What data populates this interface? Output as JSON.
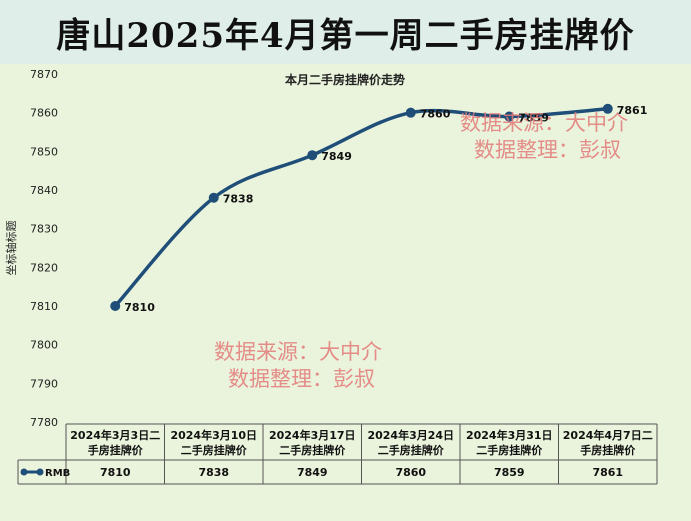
{
  "banner": {
    "title": "唐山2025年4月第一周二手房挂牌价"
  },
  "watermarks": {
    "line1": "数据来源：大中介",
    "line2": "数据整理：彭叔"
  },
  "colors": {
    "series": "#1f4e79",
    "plot_bg": "#eaf4dc",
    "banner_bg": "#dfeee8",
    "watermark": "#e47a7a"
  },
  "chart_data": {
    "type": "line",
    "title": "本月二手房挂牌价走势",
    "ylabel": "坐标轴标题",
    "xlabel": "",
    "ylim": [
      7780,
      7870
    ],
    "yticks": [
      7780,
      7790,
      7800,
      7810,
      7820,
      7830,
      7840,
      7850,
      7860,
      7870
    ],
    "categories": [
      "2024年3月3日二手房挂牌价",
      "2024年3月10日二手房挂牌价",
      "2024年3月17日二手房挂牌价",
      "2024年3月24日二手房挂牌价",
      "2024年3月31日二手房挂牌价",
      "2024年4月7日二手房挂牌价"
    ],
    "category_lines": [
      [
        "2024年3月3日二",
        "手房挂牌价"
      ],
      [
        "2024年3月10日",
        "二手房挂牌价"
      ],
      [
        "2024年3月17日",
        "二手房挂牌价"
      ],
      [
        "2024年3月24日",
        "二手房挂牌价"
      ],
      [
        "2024年3月31日",
        "二手房挂牌价"
      ],
      [
        "2024年4月7日二",
        "手房挂牌价"
      ]
    ],
    "series": [
      {
        "name": "RMB",
        "values": [
          7810,
          7838,
          7849,
          7860,
          7859,
          7861
        ]
      }
    ],
    "data_labels": [
      "7810",
      "7838",
      "7849",
      "7860",
      "7859",
      "7861"
    ],
    "grid": false,
    "legend": "data-table"
  }
}
